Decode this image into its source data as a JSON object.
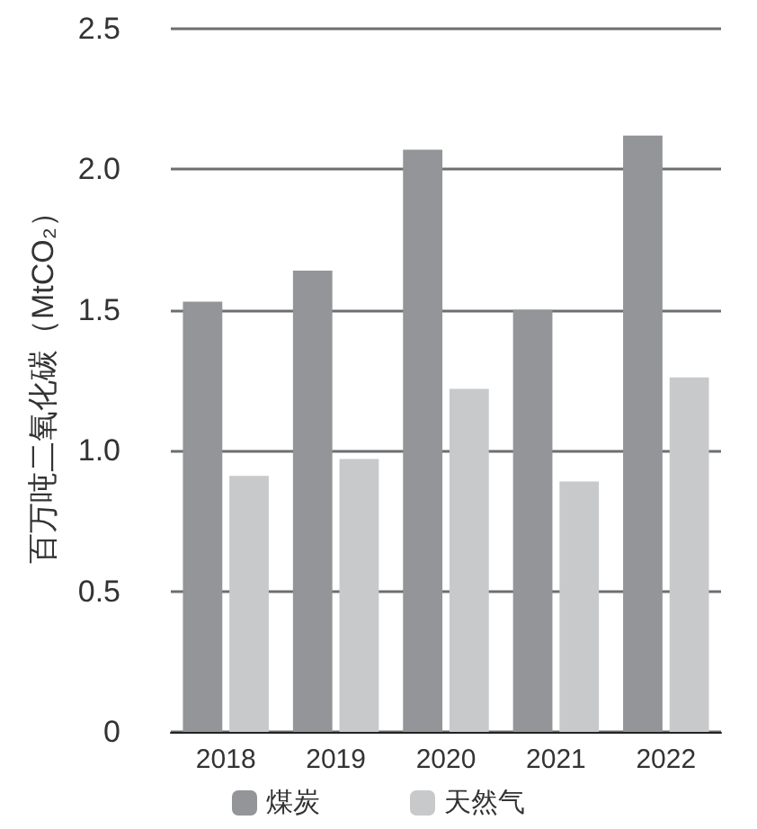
{
  "chart_data": {
    "type": "bar",
    "ylabel": "百万吨二氧化碳（MtCO₂）",
    "categories": [
      "2018",
      "2019",
      "2020",
      "2021",
      "2022"
    ],
    "series": [
      {
        "name": "煤炭",
        "color": "#939598",
        "values": [
          1.53,
          1.64,
          2.07,
          1.5,
          2.12
        ]
      },
      {
        "name": "天然气",
        "color": "#c8c9cb",
        "values": [
          0.91,
          0.97,
          1.22,
          0.89,
          1.26
        ]
      }
    ],
    "ylim": [
      0,
      2.5
    ],
    "yticks": [
      0,
      0.5,
      {
        "value": 1,
        "label": "1.0"
      },
      1.5,
      {
        "value": 2,
        "label": "2.0"
      },
      2.5
    ],
    "grid": "y",
    "legend": "bottom"
  }
}
